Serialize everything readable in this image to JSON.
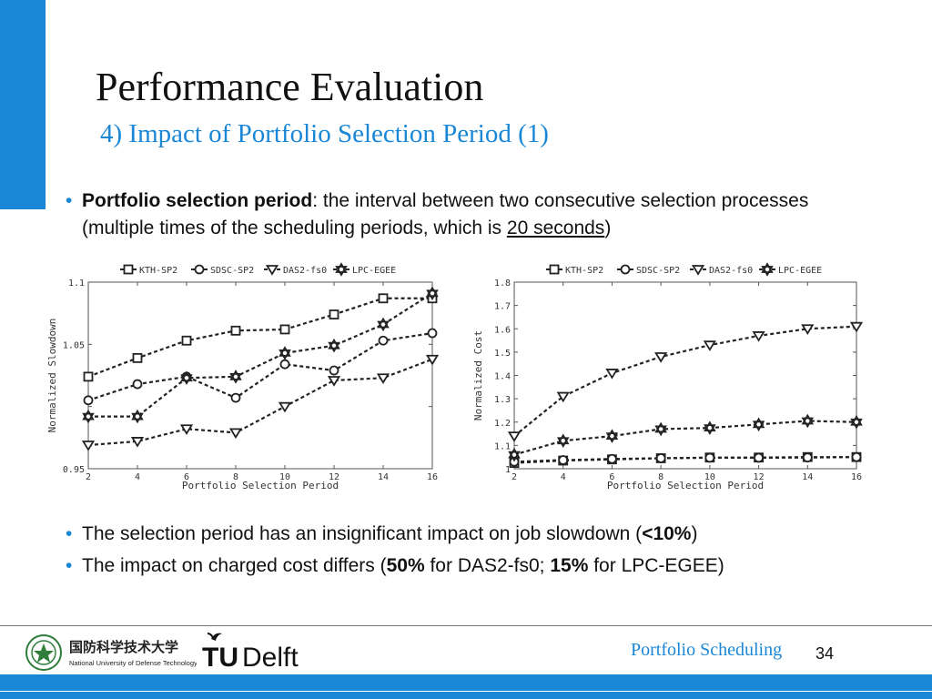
{
  "slide": {
    "title": "Performance Evaluation",
    "subtitle": "4) Impact of Portfolio Selection Period (1)",
    "bullet1": {
      "bold": "Portfolio selection period",
      "text": ": the interval between two consecutive selection processes (multiple times of the scheduling periods, which is ",
      "underlined": "20 seconds",
      "end": ")"
    },
    "bullet2": {
      "text": "The selection period has an insignificant impact on job slowdown (",
      "bold": "<10%",
      "end": ")"
    },
    "bullet3": {
      "text1": "The impact on charged cost differs (",
      "bold1": "50%",
      "text2": " for DAS2-fs0; ",
      "bold2": "15%",
      "text3": " for LPC-EGEE)"
    },
    "footer": {
      "text": "Portfolio Scheduling",
      "page": "34",
      "nudt_cn": "国防科学技术大学",
      "nudt_en": "National University of Defense Technology",
      "tu": "TU",
      "delft": "Delft"
    },
    "colors": {
      "accent": "#1a87d6",
      "ink": "#222222"
    }
  },
  "chart_data": [
    {
      "type": "line",
      "xlabel": "Portfolio Selection Period",
      "ylabel": "Normalized Slowdown",
      "x": [
        2,
        4,
        6,
        8,
        10,
        12,
        14,
        16
      ],
      "xlim": [
        2,
        16
      ],
      "ylim": [
        0.95,
        1.1
      ],
      "yticks": [
        0.95,
        1,
        1.05,
        1.1
      ],
      "yticklabels": [
        "0.95",
        "",
        "1.05",
        "1.1"
      ],
      "xticks": [
        2,
        4,
        6,
        8,
        10,
        12,
        14,
        16
      ],
      "legend": "top",
      "series": [
        {
          "name": "KTH-SP2",
          "marker": "square",
          "values": [
            1.024,
            1.039,
            1.053,
            1.061,
            1.062,
            1.074,
            1.087,
            1.087
          ]
        },
        {
          "name": "SDSC-SP2",
          "marker": "circle",
          "values": [
            1.005,
            1.018,
            1.024,
            1.007,
            1.034,
            1.029,
            1.053,
            1.059
          ]
        },
        {
          "name": "DAS2-fs0",
          "marker": "triangle-down",
          "values": [
            0.969,
            0.972,
            0.982,
            0.979,
            1.0,
            1.021,
            1.023,
            1.038
          ]
        },
        {
          "name": "LPC-EGEE",
          "marker": "star",
          "values": [
            0.992,
            0.992,
            1.023,
            1.024,
            1.043,
            1.049,
            1.066,
            1.091
          ]
        }
      ]
    },
    {
      "type": "line",
      "xlabel": "Portfolio Selection Period",
      "ylabel": "Normalized Cost",
      "x": [
        2,
        4,
        6,
        8,
        10,
        12,
        14,
        16
      ],
      "xlim": [
        2,
        16
      ],
      "ylim": [
        1,
        1.8
      ],
      "yticks": [
        1,
        1.1,
        1.2,
        1.3,
        1.4,
        1.5,
        1.6,
        1.7,
        1.8
      ],
      "yticklabels": [
        "1",
        "1.1",
        "1.2",
        "1.3",
        "1.4",
        "1.5",
        "1.6",
        "1.7",
        "1.8"
      ],
      "xticks": [
        2,
        4,
        6,
        8,
        10,
        12,
        14,
        16
      ],
      "legend": "top",
      "series": [
        {
          "name": "KTH-SP2",
          "marker": "square",
          "values": [
            1.025,
            1.035,
            1.04,
            1.045,
            1.048,
            1.048,
            1.05,
            1.05
          ]
        },
        {
          "name": "SDSC-SP2",
          "marker": "circle",
          "values": [
            1.03,
            1.037,
            1.042,
            1.045,
            1.047,
            1.047,
            1.048,
            1.05
          ]
        },
        {
          "name": "DAS2-fs0",
          "marker": "triangle-down",
          "values": [
            1.14,
            1.31,
            1.41,
            1.48,
            1.53,
            1.57,
            1.6,
            1.61
          ]
        },
        {
          "name": "LPC-EGEE",
          "marker": "star",
          "values": [
            1.06,
            1.12,
            1.14,
            1.17,
            1.175,
            1.19,
            1.205,
            1.2
          ]
        }
      ]
    }
  ]
}
